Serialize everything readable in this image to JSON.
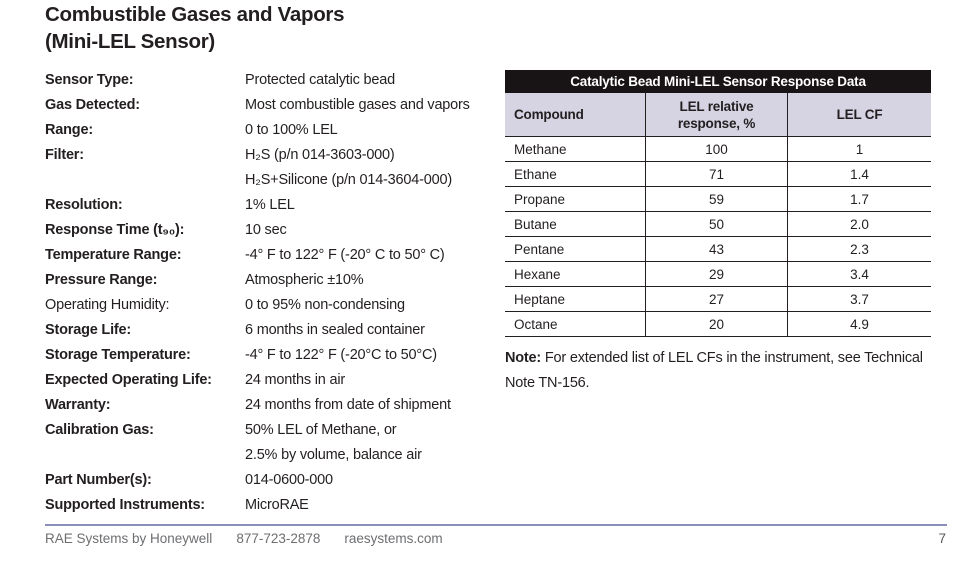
{
  "page": {
    "title_line1": "Combustible Gases and Vapors",
    "title_line2": "(Mini-LEL Sensor)",
    "page_number": "7"
  },
  "specs": [
    {
      "label": "Sensor Type:",
      "bold": true,
      "values": [
        "Protected catalytic bead"
      ]
    },
    {
      "label": "Gas Detected:",
      "bold": true,
      "values": [
        "Most combustible gases and vapors"
      ]
    },
    {
      "label": "Range:",
      "bold": true,
      "values": [
        "0 to 100% LEL"
      ]
    },
    {
      "label": "Filter:",
      "bold": true,
      "values": [
        "H₂S (p/n 014-3603-000)",
        "H₂S+Silicone (p/n 014-3604-000)"
      ]
    },
    {
      "label": "Resolution:",
      "bold": true,
      "values": [
        "1% LEL"
      ]
    },
    {
      "label": "Response Time (t₉₀):",
      "bold": true,
      "values": [
        "10 sec"
      ]
    },
    {
      "label": "Temperature Range:",
      "bold": true,
      "values": [
        "-4° F to 122° F (-20° C to 50° C)"
      ]
    },
    {
      "label": "Pressure Range:",
      "bold": true,
      "values": [
        "Atmospheric ±10%"
      ]
    },
    {
      "label": "Operating Humidity:",
      "bold": false,
      "values": [
        "0 to 95% non-condensing"
      ]
    },
    {
      "label": "Storage Life:",
      "bold": true,
      "values": [
        "6 months in sealed container"
      ]
    },
    {
      "label": "Storage Temperature:",
      "bold": true,
      "values": [
        "-4° F to 122° F (-20°C to 50°C)"
      ]
    },
    {
      "label": "Expected Operating Life:",
      "bold": true,
      "values": [
        "24 months in air"
      ]
    },
    {
      "label": "Warranty:",
      "bold": true,
      "values": [
        "24 months from date of shipment"
      ]
    },
    {
      "label": "Calibration Gas:",
      "bold": true,
      "values": [
        "50% LEL of Methane, or",
        "2.5% by volume, balance air"
      ]
    },
    {
      "label": "Part Number(s):",
      "bold": true,
      "values": [
        "014-0600-000"
      ]
    },
    {
      "label": "Supported Instruments:",
      "bold": true,
      "values": [
        "MicroRAE"
      ]
    }
  ],
  "table": {
    "title": "Catalytic Bead Mini-LEL Sensor Response Data",
    "title_bg": "#181314",
    "header_bg": "#d6d3e3",
    "columns": [
      "Compound",
      "LEL relative response, %",
      "LEL CF"
    ],
    "rows": [
      {
        "compound": "Methane",
        "lel_relative_response_pct": "100",
        "lel_cf": "1"
      },
      {
        "compound": "Ethane",
        "lel_relative_response_pct": "71",
        "lel_cf": "1.4"
      },
      {
        "compound": "Propane",
        "lel_relative_response_pct": "59",
        "lel_cf": "1.7"
      },
      {
        "compound": "Butane",
        "lel_relative_response_pct": "50",
        "lel_cf": "2.0"
      },
      {
        "compound": "Pentane",
        "lel_relative_response_pct": "43",
        "lel_cf": "2.3"
      },
      {
        "compound": "Hexane",
        "lel_relative_response_pct": "29",
        "lel_cf": "3.4"
      },
      {
        "compound": "Heptane",
        "lel_relative_response_pct": "27",
        "lel_cf": "3.7"
      },
      {
        "compound": "Octane",
        "lel_relative_response_pct": "20",
        "lel_cf": "4.9"
      }
    ]
  },
  "note": {
    "bold": "Note:",
    "text": " For extended list of LEL CFs in the instrument, see Technical Note TN-156."
  },
  "footer": {
    "company": "RAE Systems by Honeywell",
    "phone": "877-723-2878",
    "website": "raesystems.com",
    "rule_color": "#8b8eb9"
  }
}
